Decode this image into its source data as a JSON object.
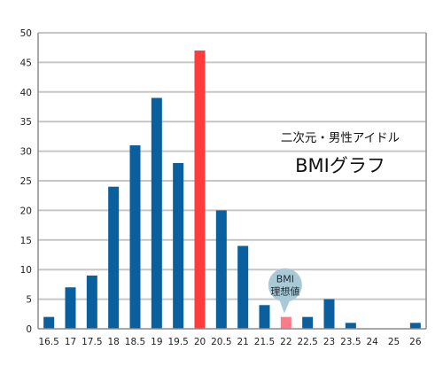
{
  "chart_data": {
    "type": "bar",
    "title": "BMIグラフ",
    "subtitle": "二次元・男性アイドル",
    "xlabel": "",
    "ylabel": "",
    "categories": [
      "16.5",
      "17",
      "17.5",
      "18",
      "18.5",
      "19",
      "19.5",
      "20",
      "20.5",
      "21",
      "21.5",
      "22",
      "22.5",
      "23",
      "23.5",
      "24",
      "25",
      "26"
    ],
    "values": [
      2,
      7,
      9,
      24,
      31,
      39,
      28,
      47,
      20,
      14,
      4,
      2,
      2,
      5,
      1,
      0,
      0,
      1
    ],
    "bar_colors": [
      "#0a5f9e",
      "#0a5f9e",
      "#0a5f9e",
      "#0a5f9e",
      "#0a5f9e",
      "#0a5f9e",
      "#0a5f9e",
      "#ff3b3b",
      "#0a5f9e",
      "#0a5f9e",
      "#0a5f9e",
      "#ff7a86",
      "#0a5f9e",
      "#0a5f9e",
      "#0a5f9e",
      "#0a5f9e",
      "#0a5f9e",
      "#0a5f9e"
    ],
    "ylim": [
      0,
      50
    ],
    "yticks": [
      0,
      5,
      10,
      15,
      20,
      25,
      30,
      35,
      40,
      45,
      50
    ],
    "grid": true,
    "annotation": {
      "category": "22",
      "lines": [
        "BMI",
        "理想値"
      ],
      "color": "#a9c9d6"
    },
    "colors": {
      "default_bar": "#0a5f9e",
      "highlight_bar": "#ff3b3b",
      "ideal_bar": "#ff7a86",
      "grid": "#c6c6c6",
      "axis_frame": "#8c8c8c"
    }
  }
}
